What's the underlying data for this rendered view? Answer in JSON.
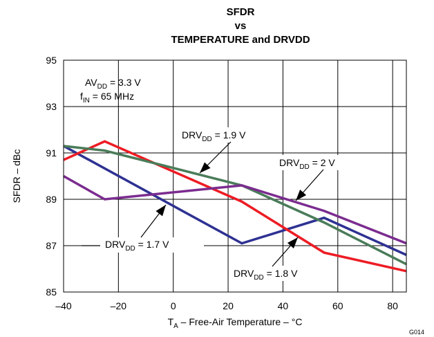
{
  "chart_data": {
    "type": "line",
    "title": [
      "SFDR",
      "vs",
      "TEMPERATURE and DRVDD"
    ],
    "xlabel": {
      "main": "T",
      "sub": "A",
      "rest": " – Free-Air Temperature – °C"
    },
    "ylabel": "SFDR – dBc",
    "xlim": [
      -40,
      85
    ],
    "ylim": [
      85,
      95
    ],
    "xticks": [
      -40,
      -20,
      0,
      20,
      40,
      60,
      80
    ],
    "xtick_labels": [
      "–40",
      "–20",
      "0",
      "20",
      "40",
      "60",
      "80"
    ],
    "yticks": [
      85,
      87,
      89,
      91,
      93,
      95
    ],
    "grid": true,
    "figure_id": "G014",
    "conditions": [
      {
        "main": "AV",
        "sub": "DD",
        "rest": " = 3.3 V"
      },
      {
        "main": "f",
        "sub": "IN",
        "rest": " = 65 MHz"
      }
    ],
    "series": [
      {
        "name": "DRVDD = 1.7 V",
        "label": {
          "main": "DRV",
          "sub": "DD",
          "rest": " = 1.7 V"
        },
        "color": "#2e3192",
        "x": [
          -40,
          25,
          55,
          85
        ],
        "y": [
          91.3,
          87.1,
          88.2,
          86.6
        ]
      },
      {
        "name": "DRVDD = 1.8 V",
        "label": {
          "main": "DRV",
          "sub": "DD",
          "rest": " = 1.8 V"
        },
        "color": "#ed1c24",
        "x": [
          -40,
          -25,
          25,
          55,
          85
        ],
        "y": [
          90.7,
          91.5,
          88.9,
          86.7,
          85.9
        ]
      },
      {
        "name": "DRVDD = 1.9 V",
        "label": {
          "main": "DRV",
          "sub": "DD",
          "rest": " = 1.9 V"
        },
        "color": "#4a7c59",
        "x": [
          -40,
          -25,
          25,
          55,
          85
        ],
        "y": [
          91.3,
          91.1,
          89.6,
          88.0,
          86.2
        ]
      },
      {
        "name": "DRVDD = 2 V",
        "label": {
          "main": "DRV",
          "sub": "DD",
          "rest": " = 2 V"
        },
        "color": "#7b2c8f",
        "x": [
          -40,
          -25,
          25,
          55,
          85
        ],
        "y": [
          90.0,
          89.0,
          89.6,
          88.5,
          87.1
        ]
      }
    ]
  }
}
